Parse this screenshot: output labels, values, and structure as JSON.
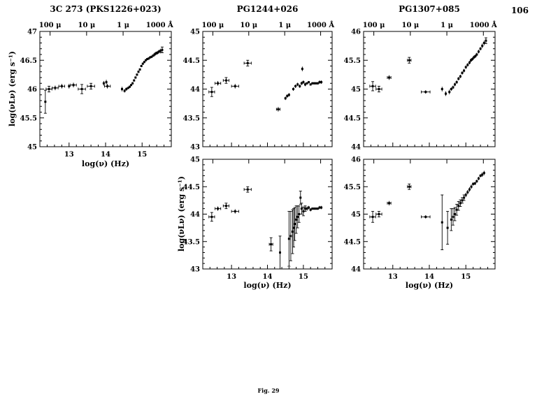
{
  "page": {
    "number": "106",
    "figure_caption": "Fig. 29"
  },
  "axis": {
    "top_ticks": [
      {
        "x": 12.48,
        "label": "100 μ"
      },
      {
        "x": 13.48,
        "label": "10 μ"
      },
      {
        "x": 14.48,
        "label": "1 μ"
      },
      {
        "x": 15.48,
        "label": "1000 Å"
      }
    ]
  },
  "chart_data": [
    {
      "type": "scatter",
      "title": "3C 273 (PKS1226+023)",
      "xlabel": "log(ν) (Hz)",
      "ylabel": "log(νLν) (erg s⁻¹)",
      "xlim": [
        12.2,
        15.8
      ],
      "ylim": [
        45,
        47
      ],
      "xticks": [
        13,
        14,
        15
      ],
      "yticks": [
        45,
        45.5,
        46,
        46.5,
        47
      ],
      "top_axis_labels": [
        "100 μ",
        "10 μ",
        "1 μ",
        "1000 Å"
      ],
      "point_format": [
        "x",
        "y",
        "yerr",
        "xerr"
      ],
      "points": [
        [
          12.35,
          45.78,
          0.2,
          0
        ],
        [
          12.45,
          46.0,
          0.05,
          0.08
        ],
        [
          12.62,
          46.02,
          0.04,
          0.08
        ],
        [
          12.8,
          46.05,
          0.04,
          0.08
        ],
        [
          13.0,
          46.05,
          0.04,
          0
        ],
        [
          13.12,
          46.07,
          0.04,
          0.08
        ],
        [
          13.35,
          46.0,
          0.08,
          0.1
        ],
        [
          13.6,
          46.05,
          0.05,
          0.1
        ],
        [
          13.95,
          46.1,
          0.04,
          0
        ],
        [
          14.02,
          46.12,
          0.04,
          0
        ],
        [
          14.05,
          46.05,
          0.04,
          0.08
        ],
        [
          14.45,
          46.0,
          0.04,
          0
        ],
        [
          14.52,
          45.97,
          0.03,
          0
        ],
        [
          14.57,
          46.0,
          0.03,
          0
        ],
        [
          14.62,
          46.02,
          0.02,
          0
        ],
        [
          14.66,
          46.04,
          0.02,
          0
        ],
        [
          14.7,
          46.07,
          0.02,
          0
        ],
        [
          14.74,
          46.1,
          0.02,
          0
        ],
        [
          14.78,
          46.15,
          0.02,
          0
        ],
        [
          14.82,
          46.2,
          0.02,
          0
        ],
        [
          14.86,
          46.25,
          0.02,
          0
        ],
        [
          14.9,
          46.3,
          0.02,
          0
        ],
        [
          14.94,
          46.34,
          0.02,
          0
        ],
        [
          14.98,
          46.4,
          0.02,
          0
        ],
        [
          15.02,
          46.44,
          0.02,
          0
        ],
        [
          15.06,
          46.47,
          0.02,
          0
        ],
        [
          15.1,
          46.5,
          0.02,
          0
        ],
        [
          15.14,
          46.52,
          0.02,
          0
        ],
        [
          15.18,
          46.53,
          0.02,
          0
        ],
        [
          15.22,
          46.55,
          0.02,
          0
        ],
        [
          15.26,
          46.56,
          0.02,
          0
        ],
        [
          15.3,
          46.58,
          0.02,
          0
        ],
        [
          15.34,
          46.6,
          0.03,
          0
        ],
        [
          15.38,
          46.62,
          0.03,
          0
        ],
        [
          15.42,
          46.63,
          0.03,
          0
        ],
        [
          15.46,
          46.65,
          0.03,
          0
        ],
        [
          15.5,
          46.66,
          0.04,
          0
        ],
        [
          15.55,
          46.68,
          0.05,
          0
        ]
      ]
    },
    {
      "type": "scatter",
      "title": "PG1244+026",
      "xlabel": "log(ν) (Hz)",
      "ylabel": "log(νLν) (erg s⁻¹)",
      "xlim": [
        12.2,
        15.8
      ],
      "ylim": [
        43,
        45
      ],
      "xticks": [
        13,
        14,
        15
      ],
      "yticks": [
        43,
        43.5,
        44,
        44.5,
        45
      ],
      "top_axis_labels": [
        "100 μ",
        "10 μ",
        "1 μ",
        "1000 Å"
      ],
      "point_format": [
        "x",
        "y",
        "yerr",
        "xerr"
      ],
      "points": [
        [
          12.45,
          43.95,
          0.08,
          0.08
        ],
        [
          12.62,
          44.1,
          0.04,
          0.08
        ],
        [
          12.85,
          44.15,
          0.05,
          0.08
        ],
        [
          13.1,
          44.05,
          0.04,
          0.1
        ],
        [
          13.45,
          44.45,
          0.05,
          0.1
        ],
        [
          14.3,
          43.65,
          0.04,
          0.05
        ],
        [
          14.5,
          43.84,
          0.03,
          0
        ],
        [
          14.55,
          43.88,
          0.03,
          0
        ],
        [
          14.6,
          43.9,
          0.03,
          0
        ],
        [
          14.72,
          44.0,
          0.03,
          0
        ],
        [
          14.78,
          44.05,
          0.03,
          0
        ],
        [
          14.84,
          44.08,
          0.03,
          0
        ],
        [
          14.9,
          44.05,
          0.03,
          0
        ],
        [
          14.95,
          44.1,
          0.03,
          0
        ],
        [
          14.97,
          44.35,
          0.04,
          0
        ],
        [
          15.0,
          44.12,
          0.03,
          0
        ],
        [
          15.05,
          44.08,
          0.03,
          0
        ],
        [
          15.1,
          44.1,
          0.02,
          0
        ],
        [
          15.15,
          44.12,
          0.02,
          0
        ],
        [
          15.2,
          44.08,
          0.02,
          0
        ],
        [
          15.25,
          44.1,
          0.02,
          0
        ],
        [
          15.3,
          44.1,
          0.02,
          0
        ],
        [
          15.35,
          44.1,
          0.02,
          0
        ],
        [
          15.4,
          44.1,
          0.02,
          0
        ],
        [
          15.45,
          44.12,
          0.03,
          0
        ],
        [
          15.5,
          44.12,
          0.03,
          0
        ]
      ]
    },
    {
      "type": "scatter",
      "title": "PG1307+085",
      "xlabel": "log(ν) (Hz)",
      "ylabel": "log(νLν) (erg s⁻¹)",
      "xlim": [
        12.2,
        15.8
      ],
      "ylim": [
        44,
        46
      ],
      "xticks": [
        13,
        14,
        15
      ],
      "yticks": [
        44,
        44.5,
        45,
        45.5,
        46
      ],
      "top_axis_labels": [
        "100 μ",
        "10 μ",
        "1 μ",
        "1000 Å"
      ],
      "point_format": [
        "x",
        "y",
        "yerr",
        "xerr"
      ],
      "points": [
        [
          12.45,
          45.05,
          0.08,
          0.08
        ],
        [
          12.62,
          45.0,
          0.05,
          0.08
        ],
        [
          12.9,
          45.2,
          0.04,
          0.05
        ],
        [
          13.45,
          45.5,
          0.05,
          0.05
        ],
        [
          13.9,
          44.95,
          0.03,
          0.12
        ],
        [
          14.35,
          45.0,
          0.04,
          0
        ],
        [
          14.45,
          44.92,
          0.04,
          0
        ],
        [
          14.55,
          44.95,
          0.04,
          0
        ],
        [
          14.6,
          45.0,
          0.03,
          0
        ],
        [
          14.65,
          45.03,
          0.03,
          0
        ],
        [
          14.7,
          45.08,
          0.03,
          0
        ],
        [
          14.75,
          45.12,
          0.03,
          0
        ],
        [
          14.8,
          45.18,
          0.03,
          0
        ],
        [
          14.85,
          45.22,
          0.03,
          0
        ],
        [
          14.9,
          45.28,
          0.03,
          0
        ],
        [
          14.95,
          45.32,
          0.03,
          0
        ],
        [
          15.0,
          45.38,
          0.03,
          0
        ],
        [
          15.05,
          45.42,
          0.03,
          0
        ],
        [
          15.1,
          45.46,
          0.03,
          0
        ],
        [
          15.14,
          45.5,
          0.03,
          0
        ],
        [
          15.18,
          45.52,
          0.03,
          0
        ],
        [
          15.22,
          45.55,
          0.03,
          0
        ],
        [
          15.26,
          45.57,
          0.03,
          0
        ],
        [
          15.3,
          45.6,
          0.03,
          0
        ],
        [
          15.35,
          45.65,
          0.03,
          0
        ],
        [
          15.4,
          45.7,
          0.03,
          0
        ],
        [
          15.45,
          45.75,
          0.04,
          0
        ],
        [
          15.5,
          45.8,
          0.04,
          0
        ],
        [
          15.55,
          45.84,
          0.05,
          0
        ]
      ]
    },
    {
      "type": "scatter",
      "title": "",
      "xlabel": "log(ν) (Hz)",
      "ylabel": "log(νLν) (erg s⁻¹)",
      "xlim": [
        12.2,
        15.8
      ],
      "ylim": [
        43,
        45
      ],
      "xticks": [
        13,
        14,
        15
      ],
      "yticks": [
        43,
        43.5,
        44,
        44.5,
        45
      ],
      "point_format": [
        "x",
        "y",
        "yerr",
        "xerr"
      ],
      "points": [
        [
          12.45,
          43.95,
          0.08,
          0.08
        ],
        [
          12.62,
          44.1,
          0.04,
          0.08
        ],
        [
          12.85,
          44.15,
          0.05,
          0.08
        ],
        [
          13.1,
          44.05,
          0.04,
          0.1
        ],
        [
          13.45,
          44.45,
          0.05,
          0.1
        ],
        [
          14.1,
          43.45,
          0.12,
          0.05
        ],
        [
          14.35,
          43.3,
          0.3,
          0
        ],
        [
          14.6,
          43.55,
          0.5,
          0
        ],
        [
          14.65,
          43.6,
          0.45,
          0
        ],
        [
          14.7,
          43.68,
          0.4,
          0
        ],
        [
          14.73,
          43.75,
          0.35,
          0
        ],
        [
          14.76,
          43.82,
          0.3,
          0
        ],
        [
          14.8,
          43.9,
          0.25,
          0
        ],
        [
          14.84,
          43.95,
          0.2,
          0
        ],
        [
          14.88,
          44.0,
          0.15,
          0
        ],
        [
          14.92,
          44.3,
          0.12,
          0
        ],
        [
          14.95,
          44.1,
          0.1,
          0
        ],
        [
          15.0,
          44.05,
          0.08,
          0
        ],
        [
          15.05,
          44.1,
          0.05,
          0
        ],
        [
          15.1,
          44.1,
          0.04,
          0
        ],
        [
          15.15,
          44.12,
          0.03,
          0
        ],
        [
          15.2,
          44.08,
          0.03,
          0
        ],
        [
          15.25,
          44.1,
          0.02,
          0
        ],
        [
          15.3,
          44.1,
          0.02,
          0
        ],
        [
          15.35,
          44.1,
          0.02,
          0
        ],
        [
          15.4,
          44.1,
          0.02,
          0
        ],
        [
          15.45,
          44.12,
          0.03,
          0
        ],
        [
          15.5,
          44.12,
          0.03,
          0
        ]
      ]
    },
    {
      "type": "scatter",
      "title": "",
      "xlabel": "log(ν) (Hz)",
      "ylabel": "log(νLν) (erg s⁻¹)",
      "xlim": [
        12.2,
        15.8
      ],
      "ylim": [
        44,
        46
      ],
      "xticks": [
        13,
        14,
        15
      ],
      "yticks": [
        44,
        44.5,
        45,
        45.5,
        46
      ],
      "point_format": [
        "x",
        "y",
        "yerr",
        "xerr"
      ],
      "points": [
        [
          12.45,
          44.95,
          0.1,
          0.08
        ],
        [
          12.62,
          45.0,
          0.05,
          0.08
        ],
        [
          12.9,
          45.2,
          0.04,
          0.05
        ],
        [
          13.45,
          45.5,
          0.05,
          0.05
        ],
        [
          13.9,
          44.95,
          0.03,
          0.12
        ],
        [
          14.35,
          44.85,
          0.5,
          0
        ],
        [
          14.5,
          44.75,
          0.3,
          0
        ],
        [
          14.6,
          44.9,
          0.2,
          0
        ],
        [
          14.65,
          44.95,
          0.15,
          0
        ],
        [
          14.7,
          45.0,
          0.12,
          0
        ],
        [
          14.75,
          45.08,
          0.1,
          0
        ],
        [
          14.8,
          45.15,
          0.08,
          0
        ],
        [
          14.85,
          45.2,
          0.06,
          0
        ],
        [
          14.9,
          45.25,
          0.05,
          0
        ],
        [
          14.95,
          45.3,
          0.05,
          0
        ],
        [
          15.0,
          45.35,
          0.04,
          0
        ],
        [
          15.05,
          45.4,
          0.04,
          0
        ],
        [
          15.1,
          45.45,
          0.04,
          0
        ],
        [
          15.15,
          45.5,
          0.04,
          0
        ],
        [
          15.2,
          45.55,
          0.03,
          0
        ],
        [
          15.25,
          45.56,
          0.03,
          0
        ],
        [
          15.3,
          45.6,
          0.03,
          0
        ],
        [
          15.35,
          45.65,
          0.03,
          0
        ],
        [
          15.4,
          45.7,
          0.03,
          0
        ],
        [
          15.45,
          45.72,
          0.04,
          0
        ],
        [
          15.5,
          45.75,
          0.04,
          0
        ]
      ]
    }
  ]
}
